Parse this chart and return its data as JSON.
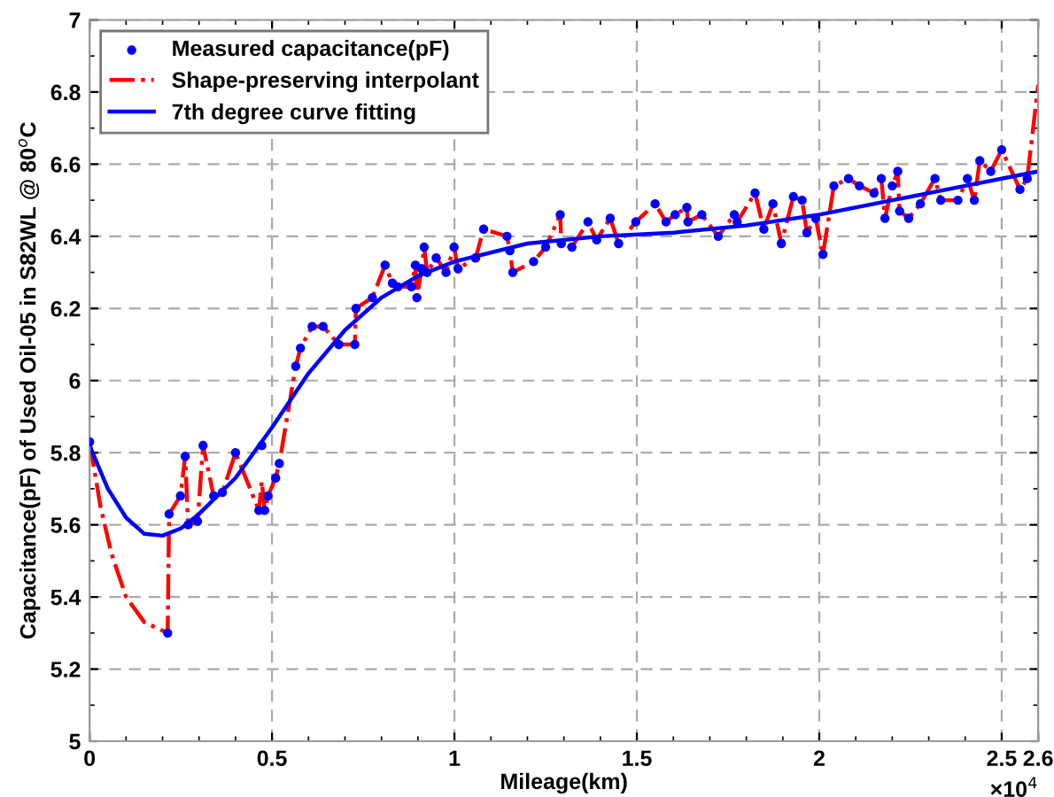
{
  "chart_data": {
    "type": "scatter",
    "xlabel": "Mileage(km)",
    "ylabel": "Capacitance(pF) of Used Oil-05 in S82WL @ 80$^{o}$C",
    "xlim": [
      0,
      2.6
    ],
    "ylim": [
      5,
      7
    ],
    "xticks": [
      0,
      0.5,
      1,
      1.5,
      2,
      2.5,
      2.6
    ],
    "yticks": [
      5,
      5.2,
      5.4,
      5.6,
      5.8,
      6,
      6.2,
      6.4,
      6.6,
      6.8,
      7
    ],
    "grid": true,
    "legend": "top left",
    "annotations": [
      "×10$^{4}$"
    ],
    "series": [
      {
        "name": "Measured capacitance(pF)",
        "marker": "circle",
        "color": "#0000ff",
        "x": [
          0,
          0.214,
          0.218,
          0.249,
          0.262,
          0.27,
          0.296,
          0.311,
          0.34,
          0.364,
          0.4,
          0.464,
          0.472,
          0.48,
          0.489,
          0.51,
          0.52,
          0.565,
          0.578,
          0.61,
          0.64,
          0.683,
          0.727,
          0.73,
          0.775,
          0.81,
          0.83,
          0.845,
          0.882,
          0.893,
          0.897,
          0.91,
          0.917,
          0.925,
          0.95,
          0.977,
          0.999,
          1.01,
          1.058,
          1.08,
          1.144,
          1.152,
          1.16,
          1.217,
          1.25,
          1.29,
          1.293,
          1.322,
          1.366,
          1.39,
          1.427,
          1.45,
          1.497,
          1.55,
          1.58,
          1.605,
          1.637,
          1.64,
          1.678,
          1.723,
          1.767,
          1.775,
          1.824,
          1.848,
          1.873,
          1.896,
          1.929,
          1.953,
          1.966,
          1.99,
          2.01,
          2.04,
          2.08,
          2.11,
          2.15,
          2.17,
          2.18,
          2.2,
          2.215,
          2.22,
          2.245,
          2.277,
          2.317,
          2.333,
          2.38,
          2.406,
          2.425,
          2.44,
          2.47,
          2.5,
          2.55,
          2.57
        ],
        "values": [
          5.83,
          5.3,
          5.63,
          5.68,
          5.79,
          5.6,
          5.61,
          5.82,
          5.68,
          5.69,
          5.8,
          5.64,
          5.82,
          5.64,
          5.68,
          5.73,
          5.77,
          6.04,
          6.09,
          6.15,
          6.15,
          6.1,
          6.1,
          6.2,
          6.23,
          6.32,
          6.27,
          6.26,
          6.26,
          6.32,
          6.23,
          6.31,
          6.37,
          6.3,
          6.34,
          6.3,
          6.37,
          6.31,
          6.34,
          6.42,
          6.4,
          6.36,
          6.3,
          6.33,
          6.37,
          6.46,
          6.38,
          6.37,
          6.44,
          6.39,
          6.45,
          6.38,
          6.44,
          6.49,
          6.44,
          6.46,
          6.48,
          6.44,
          6.46,
          6.4,
          6.46,
          6.44,
          6.52,
          6.42,
          6.49,
          6.38,
          6.51,
          6.5,
          6.41,
          6.45,
          6.35,
          6.54,
          6.56,
          6.54,
          6.52,
          6.56,
          6.45,
          6.54,
          6.58,
          6.47,
          6.45,
          6.49,
          6.56,
          6.5,
          6.5,
          6.56,
          6.5,
          6.61,
          6.58,
          6.64,
          6.53,
          6.56
        ]
      },
      {
        "name": "Shape-preserving interpolant",
        "type": "line",
        "line_style": "dashdot",
        "marker": "none",
        "color": "#ff0000",
        "x": [
          0,
          0.03,
          0.06,
          0.1,
          0.15,
          0.214,
          0.218,
          0.249,
          0.262,
          0.27,
          0.296,
          0.311,
          0.34,
          0.364,
          0.4,
          0.464,
          0.472,
          0.48,
          0.489,
          0.51,
          0.52,
          0.565,
          0.578,
          0.61,
          0.64,
          0.683,
          0.727,
          0.73,
          0.775,
          0.81,
          0.83,
          0.845,
          0.882,
          0.893,
          0.897,
          0.91,
          0.917,
          0.925,
          0.95,
          0.977,
          0.999,
          1.01,
          1.058,
          1.08,
          1.144,
          1.152,
          1.16,
          1.217,
          1.25,
          1.29,
          1.293,
          1.322,
          1.366,
          1.39,
          1.427,
          1.45,
          1.497,
          1.55,
          1.58,
          1.605,
          1.637,
          1.64,
          1.678,
          1.723,
          1.767,
          1.775,
          1.824,
          1.848,
          1.873,
          1.896,
          1.929,
          1.953,
          1.966,
          1.99,
          2.01,
          2.04,
          2.08,
          2.11,
          2.15,
          2.17,
          2.18,
          2.2,
          2.215,
          2.22,
          2.245,
          2.277,
          2.317,
          2.333,
          2.38,
          2.406,
          2.425,
          2.44,
          2.47,
          2.5,
          2.55,
          2.57,
          2.6
        ],
        "values": [
          5.83,
          5.65,
          5.52,
          5.4,
          5.33,
          5.3,
          5.63,
          5.68,
          5.79,
          5.6,
          5.61,
          5.82,
          5.68,
          5.69,
          5.8,
          5.64,
          5.72,
          5.64,
          5.68,
          5.73,
          5.77,
          6.04,
          6.09,
          6.15,
          6.15,
          6.1,
          6.1,
          6.2,
          6.23,
          6.32,
          6.27,
          6.26,
          6.26,
          6.32,
          6.23,
          6.31,
          6.37,
          6.3,
          6.34,
          6.3,
          6.37,
          6.31,
          6.34,
          6.42,
          6.4,
          6.36,
          6.3,
          6.33,
          6.37,
          6.46,
          6.38,
          6.37,
          6.44,
          6.39,
          6.45,
          6.38,
          6.44,
          6.49,
          6.44,
          6.46,
          6.48,
          6.44,
          6.46,
          6.4,
          6.46,
          6.44,
          6.52,
          6.42,
          6.49,
          6.38,
          6.51,
          6.5,
          6.41,
          6.45,
          6.35,
          6.54,
          6.56,
          6.54,
          6.52,
          6.56,
          6.45,
          6.54,
          6.58,
          6.47,
          6.45,
          6.49,
          6.56,
          6.5,
          6.5,
          6.56,
          6.5,
          6.61,
          6.58,
          6.64,
          6.53,
          6.56,
          6.82
        ]
      },
      {
        "name": "7th degree curve fitting",
        "type": "line",
        "line_style": "solid",
        "marker": "none",
        "color": "#0000ff",
        "x": [
          0,
          0.05,
          0.1,
          0.15,
          0.2,
          0.25,
          0.3,
          0.4,
          0.5,
          0.6,
          0.7,
          0.8,
          0.9,
          1.0,
          1.2,
          1.4,
          1.6,
          1.8,
          2.0,
          2.2,
          2.4,
          2.6
        ],
        "values": [
          5.82,
          5.7,
          5.62,
          5.575,
          5.57,
          5.59,
          5.63,
          5.73,
          5.87,
          6.02,
          6.14,
          6.23,
          6.29,
          6.33,
          6.38,
          6.4,
          6.41,
          6.43,
          6.46,
          6.5,
          6.54,
          6.58
        ]
      }
    ]
  }
}
